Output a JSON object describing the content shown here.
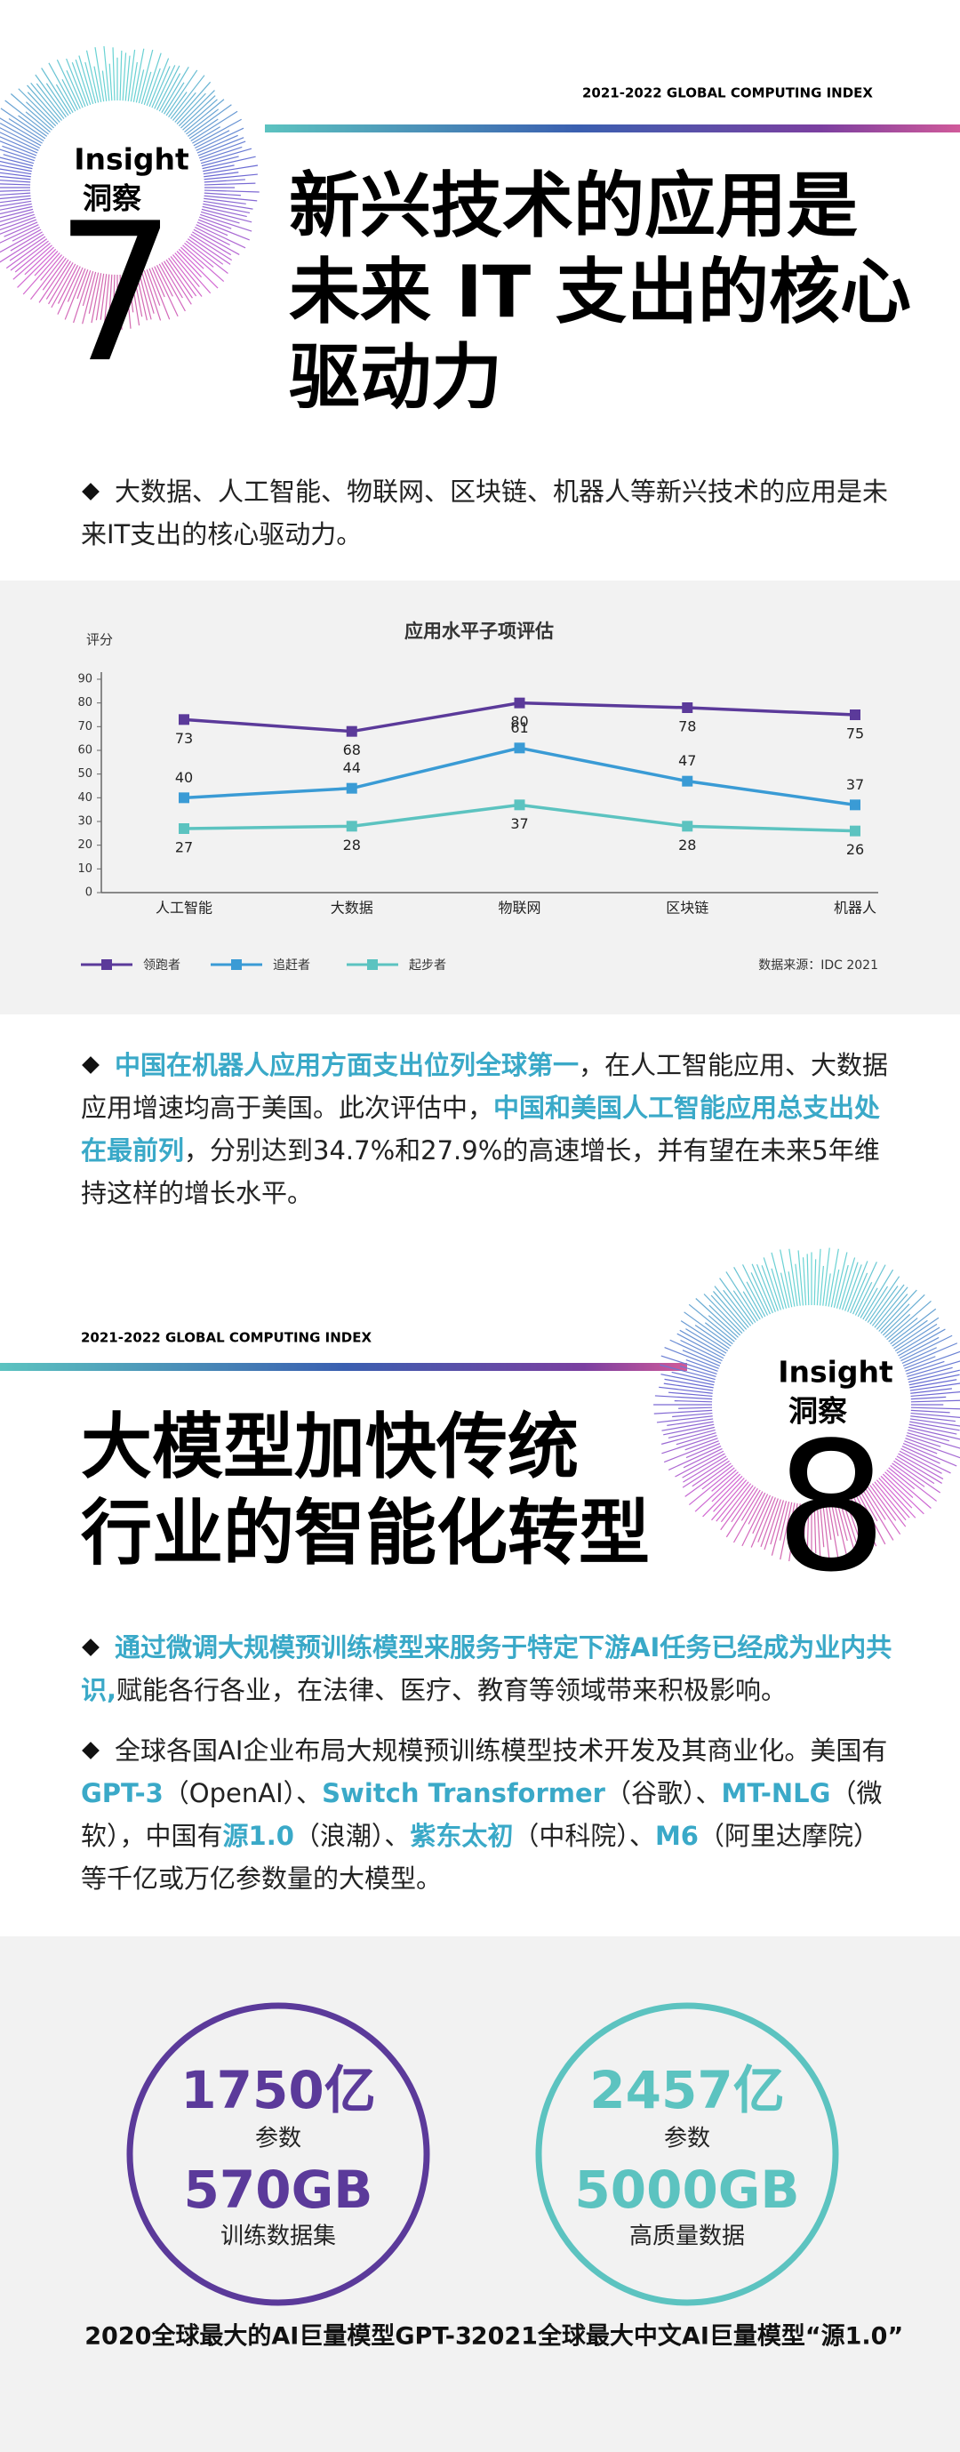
{
  "insight7": {
    "index": "2021-2022 GLOBAL COMPUTING INDEX",
    "label_en": "Insight",
    "label_cn": "洞察",
    "number": "7",
    "title_lines": [
      "新兴技术的应用是",
      "未来 IT 支出的核心",
      "驱动力"
    ],
    "paragraph": "大数据、人工智能、物联网、区块链、机器人等新兴技术的应用是未来IT支出的核心驱动力。",
    "paragraph2": [
      "中国在机器人应用方面支出位列全球第一",
      "，在人工智能应用、大数据应用增速均高于美国。此次评估中，",
      "中国和美国人工智能应用总支出处在最前列",
      "，分别达到34.7%和27.9%的高速增长，并有望在未来5年维持这样的增长水平。"
    ]
  },
  "chart_data": {
    "type": "line",
    "title": "应用水平子项评估",
    "y_label": "评分",
    "categories": [
      "人工智能",
      "大数据",
      "物联网",
      "区块链",
      "机器人"
    ],
    "series": [
      {
        "name": "领跑者",
        "color": "#5b3a9a",
        "values": [
          73,
          68,
          80,
          78,
          75
        ]
      },
      {
        "name": "追赶者",
        "color": "#3a9bd5",
        "values": [
          40,
          44,
          61,
          47,
          37
        ]
      },
      {
        "name": "起步者",
        "color": "#5cc3c0",
        "values": [
          27,
          28,
          37,
          28,
          26
        ]
      }
    ],
    "ylim": [
      0,
      90
    ],
    "yticks": [
      0,
      10,
      20,
      30,
      40,
      50,
      60,
      70,
      80,
      90
    ],
    "grid": false,
    "source": "数据来源：IDC 2021"
  },
  "insight8": {
    "index": "2021-2022 GLOBAL COMPUTING INDEX",
    "label_en": "Insight",
    "label_cn": "洞察",
    "number": "8",
    "title_lines": [
      "大模型加快传统",
      "行业的智能化转型"
    ],
    "paragraph": [
      "通过微调大规模预训练模型来服务于特定下游AI任务已经成为业内共识,",
      "赋能各行各业，在法律、医疗、教育等领域带来积极影响。"
    ],
    "paragraph2": [
      "全球各国AI企业布局大规模预训练模型技术开发及其商业化。美国有 ",
      "GPT-3",
      "（OpenAI）、",
      "Switch Transformer",
      "（谷歌）、",
      "MT-NLG",
      "（微软），中国有",
      "源1.0",
      "（浪潮）、",
      "紫东太初",
      "（中科院）、",
      "M6",
      "（阿里达摩院）等千亿或万亿参数量的大模型。"
    ]
  },
  "stats": [
    {
      "params": "1750亿",
      "params_label": "参数",
      "data": "570GB",
      "data_label": "训练数据集",
      "caption": "2020全球最大的AI巨量模型GPT-3"
    },
    {
      "params": "2457亿",
      "params_label": "参数",
      "data": "5000GB",
      "data_label": "高质量数据",
      "caption": "2021全球最大中文AI巨量模型“源1.0”"
    }
  ]
}
